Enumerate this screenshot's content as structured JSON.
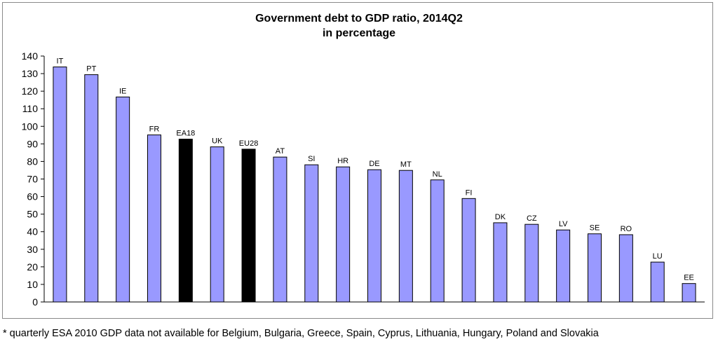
{
  "chart_data": {
    "type": "bar",
    "title": "Government debt to GDP ratio, 2014Q2",
    "subtitle": "in percentage",
    "xlabel": "",
    "ylabel": "",
    "ylim": [
      0,
      140
    ],
    "yticks": [
      0,
      10,
      20,
      30,
      40,
      50,
      60,
      70,
      80,
      90,
      100,
      110,
      120,
      130,
      140
    ],
    "grid": false,
    "categories": [
      "IT",
      "PT",
      "IE",
      "FR",
      "EA18",
      "UK",
      "EU28",
      "AT",
      "SI",
      "HR",
      "DE",
      "MT",
      "NL",
      "FI",
      "DK",
      "CZ",
      "LV",
      "SE",
      "RO",
      "LU",
      "EE"
    ],
    "values": [
      133.8,
      129.4,
      116.7,
      95.1,
      92.7,
      88.3,
      87.0,
      82.5,
      78.1,
      76.9,
      75.3,
      74.9,
      69.5,
      58.9,
      45.1,
      44.2,
      41.0,
      38.8,
      38.3,
      22.7,
      10.5
    ],
    "bar_colors": [
      "#9999ff",
      "#9999ff",
      "#9999ff",
      "#9999ff",
      "#000000",
      "#9999ff",
      "#000000",
      "#9999ff",
      "#9999ff",
      "#9999ff",
      "#9999ff",
      "#9999ff",
      "#9999ff",
      "#9999ff",
      "#9999ff",
      "#9999ff",
      "#9999ff",
      "#9999ff",
      "#9999ff",
      "#9999ff",
      "#9999ff"
    ]
  },
  "footnote": "* quarterly ESA 2010 GDP data not available for Belgium, Bulgaria, Greece, Spain, Cyprus, Lithuania, Hungary, Poland and Slovakia"
}
